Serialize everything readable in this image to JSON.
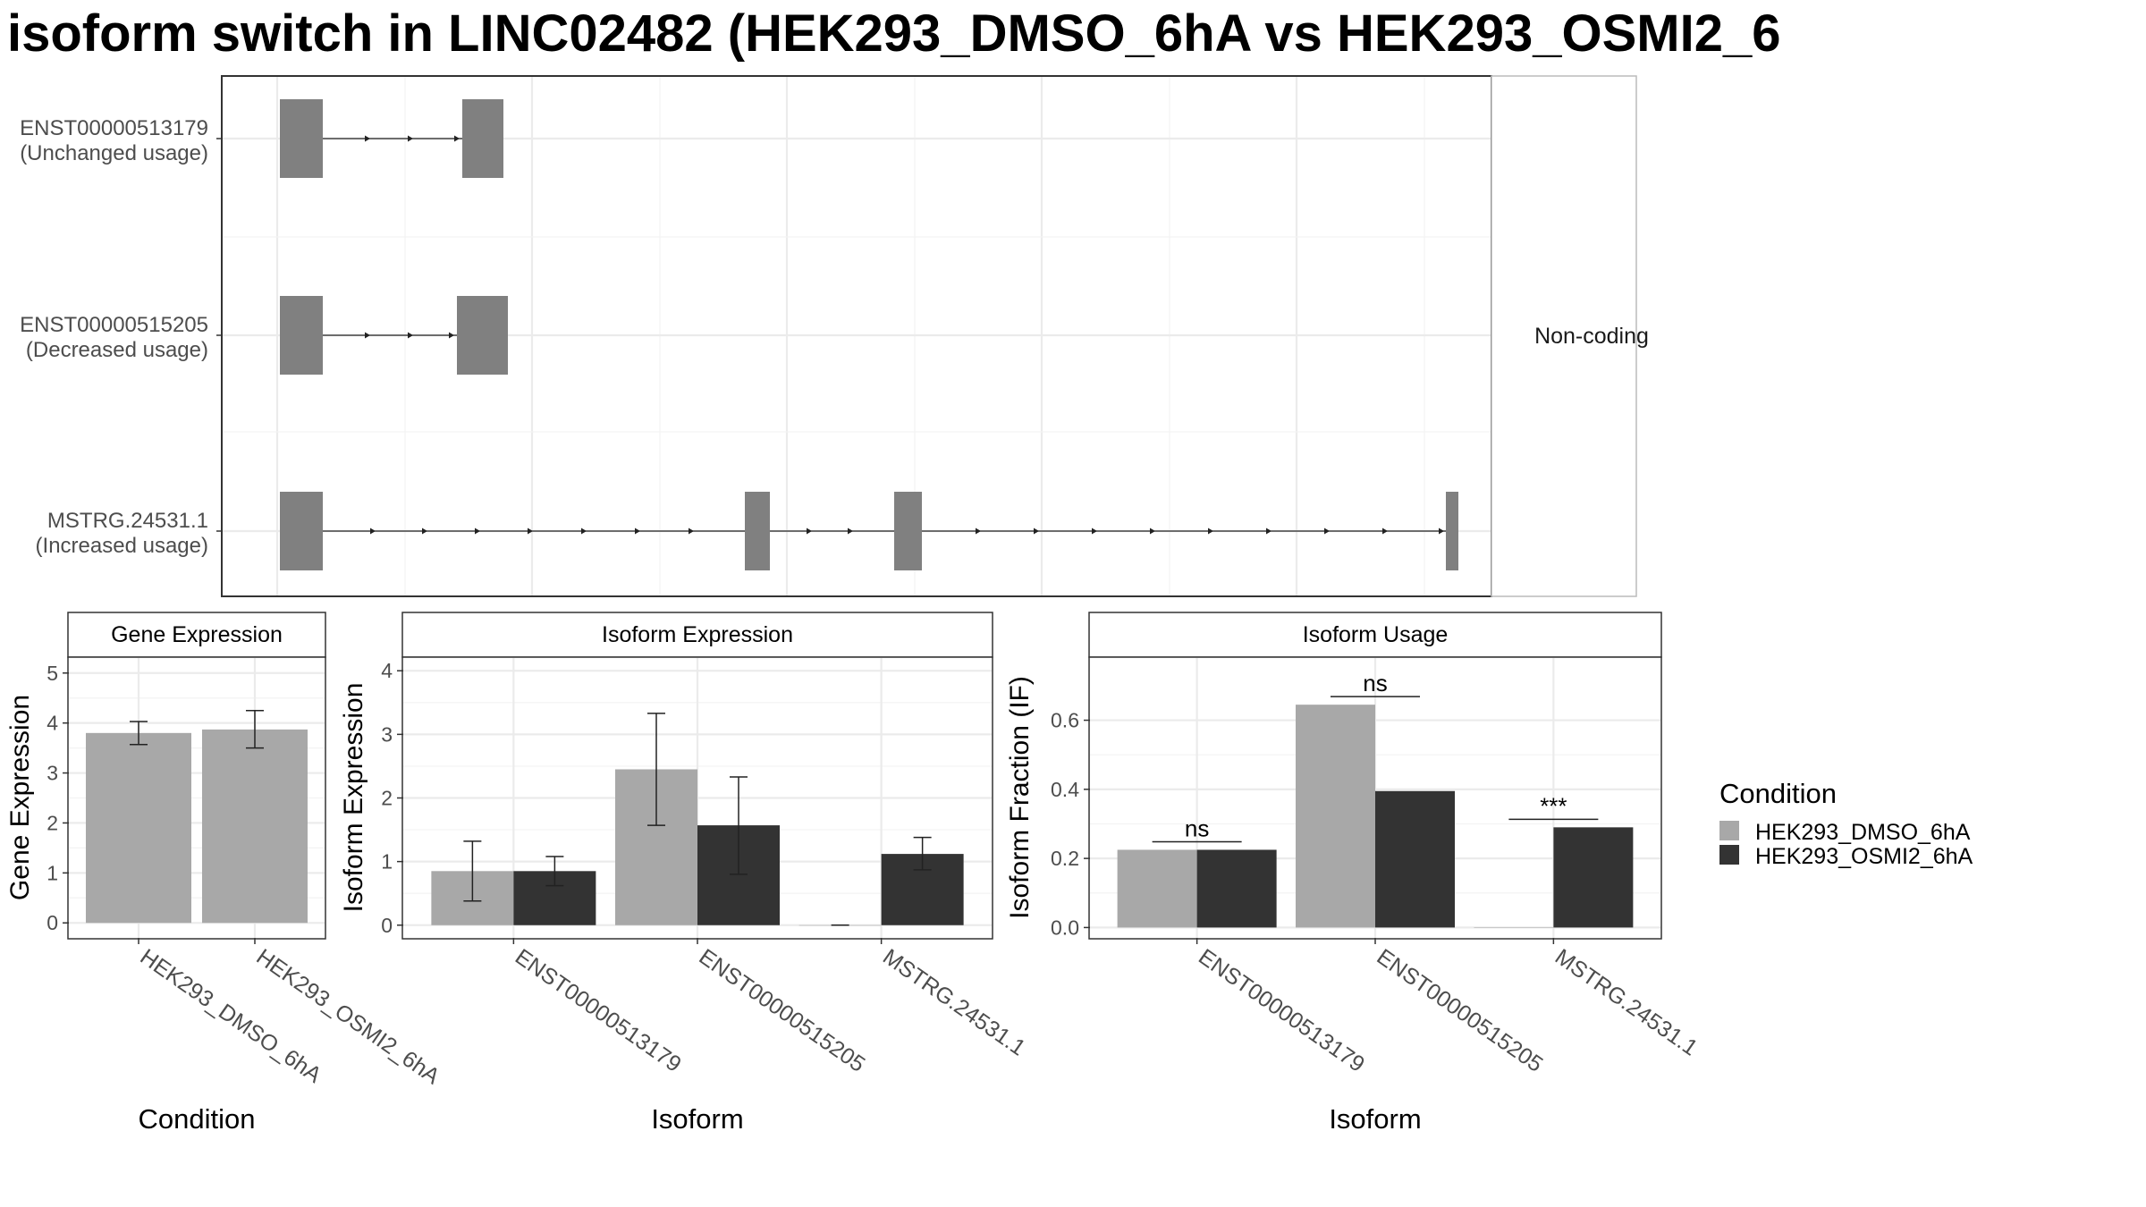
{
  "title": "isoform switch in LINC02482 (HEK293_DMSO_6hA vs HEK293_OSMI2_6",
  "colors": {
    "dmso": "#a8a8a8",
    "osmi": "#333333",
    "exon": "#808080",
    "grid": "#ebebeb",
    "frame": "#333333"
  },
  "chart_data": [
    {
      "type": "gene-structure",
      "strip_label": "Non-coding",
      "isoforms": [
        {
          "id": "ENST00000513179",
          "usage": "(Unchanged usage)",
          "exon_count": 2
        },
        {
          "id": "ENST00000515205",
          "usage": "(Decreased usage)",
          "exon_count": 2
        },
        {
          "id": "MSTRG.24531.1",
          "usage": "(Increased usage)",
          "exon_count": 4
        }
      ]
    },
    {
      "type": "bar",
      "title": "Gene Expression",
      "xlabel": "Condition",
      "ylabel": "Gene Expression",
      "ylim": [
        -0.3,
        5.3
      ],
      "yticks": [
        "0",
        "1",
        "2",
        "3",
        "4",
        "5"
      ],
      "categories": [
        "HEK293_DMSO_6hA",
        "HEK293_OSMI2_6hA"
      ],
      "values": [
        3.8,
        3.87
      ],
      "errors": [
        [
          3.57,
          4.03
        ],
        [
          3.5,
          4.25
        ]
      ]
    },
    {
      "type": "bar",
      "title": "Isoform Expression",
      "xlabel": "Isoform",
      "ylabel": "Isoform Expression",
      "ylim": [
        -0.2,
        4.2
      ],
      "yticks": [
        "0",
        "1",
        "2",
        "3",
        "4"
      ],
      "categories": [
        "ENST00000513179",
        "ENST00000515205",
        "MSTRG.24531.1"
      ],
      "series": [
        {
          "name": "HEK293_DMSO_6hA",
          "values": [
            0.85,
            2.45,
            0.0
          ],
          "errors": [
            [
              0.38,
              1.32
            ],
            [
              1.57,
              3.33
            ],
            [
              0.0,
              0.0
            ]
          ]
        },
        {
          "name": "HEK293_OSMI2_6hA",
          "values": [
            0.85,
            1.57,
            1.12
          ],
          "errors": [
            [
              0.62,
              1.08
            ],
            [
              0.8,
              2.33
            ],
            [
              0.87,
              1.38
            ]
          ]
        }
      ]
    },
    {
      "type": "bar",
      "title": "Isoform Usage",
      "xlabel": "Isoform",
      "ylabel": "Isoform Fraction (IF)",
      "ylim": [
        -0.03,
        0.78
      ],
      "yticks": [
        "0.0",
        "0.2",
        "0.4",
        "0.6"
      ],
      "categories": [
        "ENST00000513179",
        "ENST00000515205",
        "MSTRG.24531.1"
      ],
      "series": [
        {
          "name": "HEK293_DMSO_6hA",
          "values": [
            0.225,
            0.645,
            0.0
          ]
        },
        {
          "name": "HEK293_OSMI2_6hA",
          "values": [
            0.225,
            0.395,
            0.29
          ]
        }
      ],
      "significance": [
        "ns",
        "ns",
        "***"
      ]
    }
  ],
  "legend": {
    "title": "Condition",
    "entries": [
      "HEK293_DMSO_6hA",
      "HEK293_OSMI2_6hA"
    ]
  }
}
